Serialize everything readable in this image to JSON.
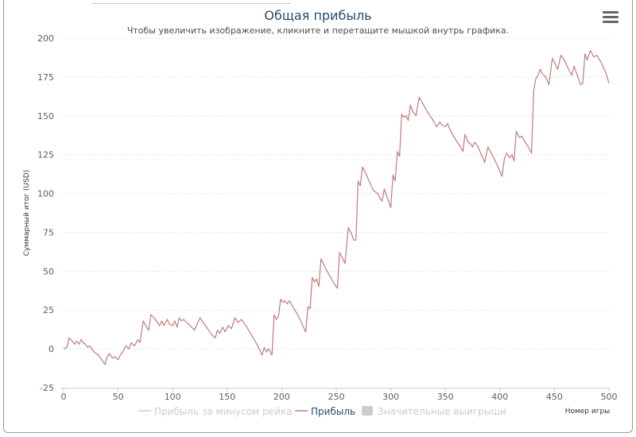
{
  "chart_data": {
    "type": "line",
    "title": "Общая прибыль",
    "subtitle": "Чтобы увеличить изображение, кликните и перетащите мышкой внутрь графика.",
    "xlabel": "Номер игры",
    "ylabel": "Суммарный итог (USD)",
    "xlim": [
      0,
      500
    ],
    "ylim": [
      -25,
      200
    ],
    "x_ticks": [
      0,
      50,
      100,
      150,
      200,
      250,
      300,
      350,
      400,
      450,
      500
    ],
    "y_ticks": [
      -25,
      0,
      25,
      50,
      75,
      100,
      125,
      150,
      175,
      200
    ],
    "grid": "horizontal-dotted",
    "legend_position": "bottom-center",
    "series": [
      {
        "name": "Прибыль за минусом рейка",
        "color": "#cccccc",
        "visible": false,
        "values": []
      },
      {
        "name": "Прибыль",
        "color": "#c27a7a",
        "visible": true,
        "points": [
          [
            0,
            0
          ],
          [
            3,
            1
          ],
          [
            5,
            7
          ],
          [
            8,
            5
          ],
          [
            10,
            3
          ],
          [
            12,
            5
          ],
          [
            14,
            3
          ],
          [
            16,
            6
          ],
          [
            18,
            4
          ],
          [
            20,
            3
          ],
          [
            22,
            1
          ],
          [
            24,
            2
          ],
          [
            28,
            -2
          ],
          [
            32,
            -4
          ],
          [
            35,
            -7
          ],
          [
            38,
            -10
          ],
          [
            40,
            -5
          ],
          [
            42,
            -3
          ],
          [
            45,
            -6
          ],
          [
            47,
            -5
          ],
          [
            50,
            -7
          ],
          [
            52,
            -4
          ],
          [
            55,
            -1
          ],
          [
            57,
            2
          ],
          [
            60,
            0
          ],
          [
            62,
            4
          ],
          [
            65,
            2
          ],
          [
            68,
            6
          ],
          [
            70,
            4
          ],
          [
            73,
            18
          ],
          [
            76,
            14
          ],
          [
            78,
            12
          ],
          [
            80,
            22
          ],
          [
            83,
            20
          ],
          [
            86,
            17
          ],
          [
            88,
            15
          ],
          [
            90,
            18
          ],
          [
            92,
            15
          ],
          [
            95,
            19
          ],
          [
            97,
            16
          ],
          [
            100,
            15
          ],
          [
            102,
            18
          ],
          [
            104,
            14
          ],
          [
            106,
            20
          ],
          [
            108,
            18
          ],
          [
            110,
            19
          ],
          [
            113,
            17
          ],
          [
            116,
            15
          ],
          [
            120,
            12
          ],
          [
            125,
            20
          ],
          [
            128,
            17
          ],
          [
            132,
            13
          ],
          [
            136,
            9
          ],
          [
            139,
            7
          ],
          [
            141,
            12
          ],
          [
            143,
            10
          ],
          [
            146,
            14
          ],
          [
            148,
            11
          ],
          [
            151,
            15
          ],
          [
            154,
            13
          ],
          [
            157,
            20
          ],
          [
            160,
            17
          ],
          [
            163,
            19
          ],
          [
            168,
            14
          ],
          [
            173,
            8
          ],
          [
            178,
            2
          ],
          [
            182,
            -4
          ],
          [
            184,
            1
          ],
          [
            186,
            -2
          ],
          [
            188,
            0
          ],
          [
            191,
            -4
          ],
          [
            193,
            22
          ],
          [
            195,
            19
          ],
          [
            197,
            21
          ],
          [
            199,
            32
          ],
          [
            201,
            30
          ],
          [
            203,
            31
          ],
          [
            205,
            29
          ],
          [
            207,
            31
          ],
          [
            212,
            25
          ],
          [
            216,
            20
          ],
          [
            220,
            14
          ],
          [
            222,
            11
          ],
          [
            224,
            27
          ],
          [
            226,
            26
          ],
          [
            228,
            46
          ],
          [
            230,
            43
          ],
          [
            232,
            45
          ],
          [
            234,
            40
          ],
          [
            236,
            58
          ],
          [
            240,
            52
          ],
          [
            244,
            47
          ],
          [
            248,
            42
          ],
          [
            251,
            39
          ],
          [
            253,
            62
          ],
          [
            256,
            58
          ],
          [
            258,
            55
          ],
          [
            261,
            78
          ],
          [
            264,
            74
          ],
          [
            266,
            70
          ],
          [
            268,
            70
          ],
          [
            270,
            108
          ],
          [
            272,
            105
          ],
          [
            274,
            117
          ],
          [
            277,
            113
          ],
          [
            280,
            108
          ],
          [
            284,
            102
          ],
          [
            288,
            100
          ],
          [
            290,
            97
          ],
          [
            292,
            95
          ],
          [
            294,
            103
          ],
          [
            296,
            99
          ],
          [
            298,
            95
          ],
          [
            300,
            91
          ],
          [
            302,
            112
          ],
          [
            304,
            108
          ],
          [
            306,
            127
          ],
          [
            308,
            124
          ],
          [
            310,
            151
          ],
          [
            312,
            149
          ],
          [
            314,
            150
          ],
          [
            316,
            147
          ],
          [
            318,
            157
          ],
          [
            320,
            153
          ],
          [
            323,
            150
          ],
          [
            326,
            162
          ],
          [
            330,
            157
          ],
          [
            334,
            152
          ],
          [
            338,
            148
          ],
          [
            342,
            143
          ],
          [
            345,
            146
          ],
          [
            347,
            144
          ],
          [
            350,
            143
          ],
          [
            352,
            145
          ],
          [
            355,
            140
          ],
          [
            360,
            134
          ],
          [
            364,
            130
          ],
          [
            366,
            127
          ],
          [
            368,
            138
          ],
          [
            371,
            133
          ],
          [
            373,
            132
          ],
          [
            375,
            130
          ],
          [
            377,
            133
          ],
          [
            380,
            130
          ],
          [
            383,
            125
          ],
          [
            386,
            120
          ],
          [
            389,
            130
          ],
          [
            392,
            126
          ],
          [
            395,
            122
          ],
          [
            399,
            116
          ],
          [
            402,
            111
          ],
          [
            404,
            122
          ],
          [
            406,
            126
          ],
          [
            409,
            123
          ],
          [
            411,
            125
          ],
          [
            413,
            121
          ],
          [
            415,
            140
          ],
          [
            418,
            136
          ],
          [
            420,
            137
          ],
          [
            423,
            133
          ],
          [
            426,
            130
          ],
          [
            429,
            126
          ],
          [
            431,
            166
          ],
          [
            433,
            174
          ],
          [
            435,
            176
          ],
          [
            437,
            180
          ],
          [
            439,
            177
          ],
          [
            442,
            175
          ],
          [
            445,
            170
          ],
          [
            448,
            187
          ],
          [
            451,
            183
          ],
          [
            453,
            180
          ],
          [
            456,
            189
          ],
          [
            459,
            186
          ],
          [
            463,
            180
          ],
          [
            466,
            176
          ],
          [
            468,
            182
          ],
          [
            471,
            176
          ],
          [
            474,
            170
          ],
          [
            476,
            171
          ],
          [
            478,
            190
          ],
          [
            480,
            186
          ],
          [
            483,
            192
          ],
          [
            486,
            188
          ],
          [
            489,
            189
          ],
          [
            493,
            184
          ],
          [
            497,
            178
          ],
          [
            500,
            171
          ]
        ]
      },
      {
        "name": "Значительные выигрыши",
        "color": "#cccccc",
        "visible": false,
        "values": []
      }
    ]
  }
}
